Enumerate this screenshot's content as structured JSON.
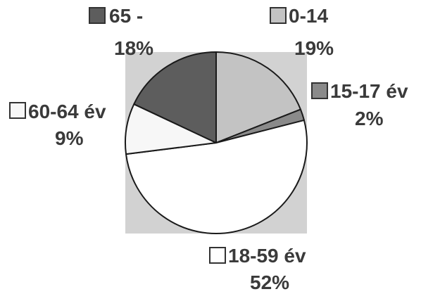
{
  "chart_data": {
    "type": "pie",
    "title": "",
    "legend": "labels beside slices",
    "colors": {
      "plot_area": "#d2d2d2",
      "slice_outline": "#1a1a1a",
      "label_text": "#3a3a3a"
    },
    "slices": [
      {
        "label": "0-14",
        "percent_label": "19%",
        "value": 19,
        "color": "#c3c3c3"
      },
      {
        "label": "15-17 év",
        "percent_label": "2%",
        "value": 2,
        "color": "#8a8a8a"
      },
      {
        "label": "18-59 év",
        "percent_label": "52%",
        "value": 52,
        "color": "#ffffff"
      },
      {
        "label": "60-64 év",
        "percent_label": "9%",
        "value": 9,
        "color": "#f7f7f7"
      },
      {
        "label": "65 -",
        "percent_label": "18%",
        "value": 18,
        "color": "#5d5d5d"
      }
    ]
  }
}
